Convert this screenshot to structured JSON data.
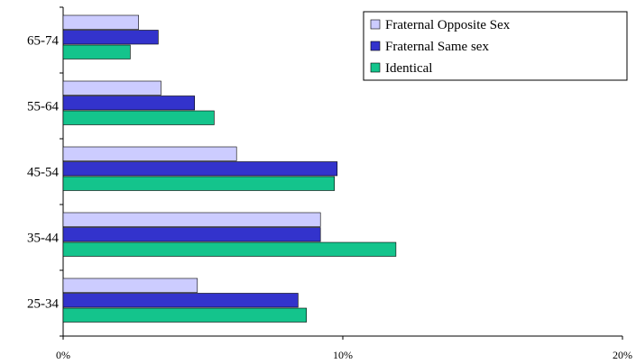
{
  "chart_data": {
    "type": "bar",
    "orientation": "horizontal",
    "categories": [
      "25-34",
      "35-44",
      "45-54",
      "55-64",
      "65-74"
    ],
    "series": [
      {
        "name": "Fraternal Opposite Sex",
        "values": [
          4.8,
          9.2,
          6.2,
          3.5,
          2.7
        ],
        "color": "#ccccff"
      },
      {
        "name": "Fraternal Same sex",
        "values": [
          8.4,
          9.2,
          9.8,
          4.7,
          3.4
        ],
        "color": "#3333cc"
      },
      {
        "name": "Identical",
        "values": [
          8.7,
          11.9,
          9.7,
          5.4,
          2.4
        ],
        "color": "#14c48c"
      }
    ],
    "x_ticks": [
      "0%",
      "10%",
      "20%"
    ],
    "xlim": [
      0,
      20
    ],
    "legend_position": "top-right",
    "grid": false
  }
}
